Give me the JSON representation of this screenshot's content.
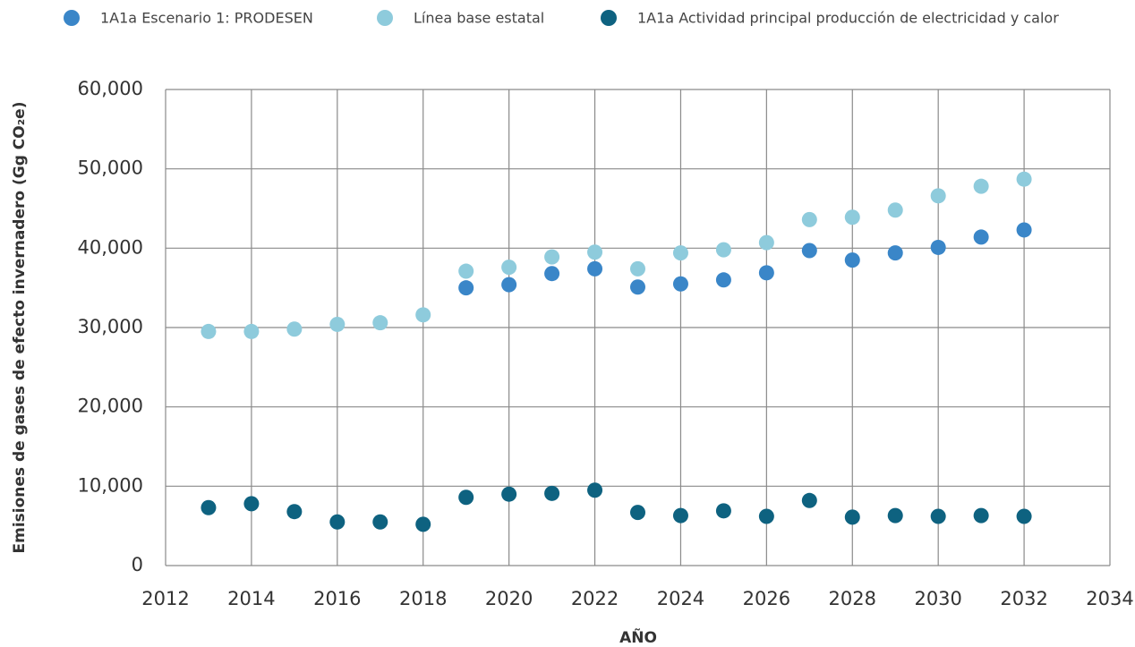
{
  "chart_data": {
    "type": "scatter",
    "x_label": "AÑO",
    "y_label": "Emisiones de gases de efecto invernadero (Gg CO₂e)",
    "xlim": [
      2012,
      2034
    ],
    "xticks": [
      2012,
      2014,
      2016,
      2018,
      2020,
      2022,
      2024,
      2026,
      2028,
      2030,
      2032,
      2034
    ],
    "ylim": [
      0,
      60000
    ],
    "yticks": [
      0,
      {
        "value": 10000,
        "label": "10,000"
      },
      {
        "value": 20000,
        "label": "20,000"
      },
      {
        "value": 30000,
        "label": "30,000"
      },
      {
        "value": 40000,
        "label": "40,000"
      },
      {
        "value": 50000,
        "label": "50,000"
      },
      {
        "value": 60000,
        "label": "60,000"
      }
    ],
    "grid": true,
    "legend": "top",
    "series": [
      {
        "name": "1A1a Escenario 1: PRODESEN",
        "color": "#3a86c8",
        "x": [
          2019,
          2020,
          2021,
          2022,
          2023,
          2024,
          2025,
          2026,
          2027,
          2028,
          2029,
          2030,
          2031,
          2032
        ],
        "values": [
          35000,
          35400,
          36800,
          37400,
          35100,
          35500,
          36000,
          36900,
          39700,
          38500,
          39400,
          40100,
          41400,
          42300
        ]
      },
      {
        "name": "Línea base estatal",
        "color": "#8ecbdc",
        "x": [
          2013,
          2014,
          2015,
          2016,
          2017,
          2018,
          2019,
          2020,
          2021,
          2022,
          2023,
          2024,
          2025,
          2026,
          2027,
          2028,
          2029,
          2030,
          2031,
          2032
        ],
        "values": [
          29500,
          29500,
          29800,
          30400,
          30600,
          31600,
          37100,
          37600,
          38900,
          39500,
          37400,
          39400,
          39800,
          40700,
          43600,
          43900,
          44800,
          46600,
          47800,
          48700
        ]
      },
      {
        "name": "1A1a Actividad principal producción de electricidad y calor",
        "color": "#0e6280",
        "x": [
          2013,
          2014,
          2015,
          2016,
          2017,
          2018,
          2019,
          2020,
          2021,
          2022,
          2023,
          2024,
          2025,
          2026,
          2027,
          2028,
          2029,
          2030,
          2031,
          2032
        ],
        "values": [
          7300,
          7800,
          6800,
          5500,
          5500,
          5200,
          8600,
          9000,
          9100,
          9500,
          6700,
          6300,
          6900,
          6200,
          8200,
          6100,
          6300,
          6200,
          6300,
          6200
        ]
      }
    ]
  }
}
